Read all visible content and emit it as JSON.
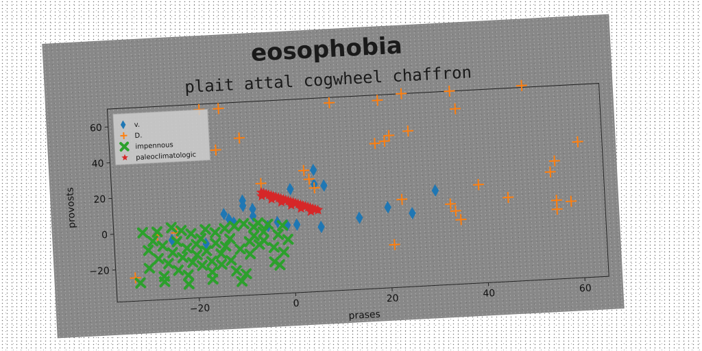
{
  "chart_data": {
    "type": "scatter",
    "title": "eosophobia",
    "subtitle": "plait attal cogwheel chaffron",
    "xlabel": "prases",
    "ylabel": "provosts",
    "xlim": [
      -37,
      65
    ],
    "ylim": [
      -38,
      70
    ],
    "xticks": [
      -20,
      0,
      20,
      40,
      60
    ],
    "yticks": [
      -20,
      0,
      20,
      40,
      60
    ],
    "legend_position": "upper-left",
    "grid": false,
    "series": [
      {
        "name": "v.",
        "marker": "diamond",
        "color": "#1f77b4",
        "x": [
          -14,
          -13,
          -12,
          -10,
          -10,
          -8,
          -8,
          -5,
          -3,
          -1,
          0,
          1,
          5,
          5,
          6,
          7,
          14,
          20,
          25,
          30,
          -25,
          -18
        ],
        "y": [
          8,
          5,
          3,
          15,
          12,
          10,
          6,
          0,
          2,
          0,
          20,
          0,
          30,
          22,
          -2,
          21,
          2,
          7,
          3,
          15,
          -5,
          -8
        ]
      },
      {
        "name": "D.",
        "marker": "plus",
        "color": "#ff7f0e",
        "x": [
          -33,
          -28,
          -24,
          -18,
          -15,
          -14,
          -10,
          -6,
          3,
          4,
          5,
          9,
          18,
          19,
          20,
          21,
          23,
          24,
          25,
          33,
          34,
          34,
          35,
          35,
          39,
          45,
          49,
          54,
          55,
          55,
          55,
          58,
          60,
          21
        ],
        "y": [
          -25,
          -2,
          -1,
          67,
          44,
          67,
          50,
          24,
          30,
          25,
          20,
          67,
          43,
          67,
          44,
          47,
          11,
          70,
          49,
          7,
          70,
          3,
          -2,
          60,
          17,
          9,
          71,
          22,
          28,
          6,
          1,
          5,
          38,
          -14
        ]
      },
      {
        "name": "impennous",
        "marker": "x",
        "color": "#2ca02c",
        "x": [
          -32,
          -31,
          -30,
          -30,
          -29,
          -28,
          -28,
          -27,
          -27,
          -26,
          -25,
          -25,
          -24,
          -24,
          -23,
          -23,
          -22,
          -22,
          -21,
          -21,
          -20,
          -20,
          -19,
          -19,
          -18,
          -18,
          -17,
          -17,
          -16,
          -16,
          -15,
          -15,
          -14,
          -14,
          -13,
          -13,
          -12,
          -12,
          -11,
          -11,
          -10,
          -10,
          -9,
          -9,
          -8,
          -8,
          -7,
          -7,
          -6,
          -6,
          -5,
          -4,
          -4,
          -3,
          -3,
          -2,
          -2,
          -1,
          -27,
          -22,
          -17
        ],
        "y": [
          -28,
          0,
          -10,
          -20,
          -5,
          0,
          -15,
          -25,
          -8,
          -18,
          -12,
          2,
          -22,
          -6,
          -15,
          0,
          -10,
          -25,
          -18,
          -2,
          -8,
          -14,
          -20,
          -5,
          0,
          -12,
          -18,
          -24,
          -8,
          -2,
          -14,
          -20,
          0,
          -10,
          -6,
          -18,
          1,
          -24,
          -12,
          -30,
          -26,
          2,
          -8,
          -15,
          0,
          -5,
          -10,
          2,
          -3,
          -8,
          1,
          -12,
          -20,
          -5,
          -22,
          -15,
          0,
          -8,
          -28,
          -30,
          -28
        ]
      },
      {
        "name": "paleoclimatologic",
        "marker": "star",
        "color": "#d62728",
        "x": [
          -6,
          -5.5,
          -5,
          -4.5,
          -4,
          -3.5,
          -3,
          -2.5,
          -2,
          -1.5,
          -1,
          -0.5,
          0,
          0.5,
          1,
          1.5,
          2,
          2.5,
          3,
          3.5,
          4,
          4.5,
          5,
          5.5,
          -6,
          -4,
          -2,
          0,
          2,
          4
        ],
        "y": [
          19,
          18.5,
          18,
          17.5,
          17,
          16.5,
          16,
          15.5,
          15,
          14.5,
          14,
          13.5,
          13,
          12.5,
          12,
          11.5,
          11,
          10.5,
          10,
          9.5,
          9,
          8.5,
          8,
          7.5,
          17,
          15,
          13,
          11,
          9,
          7
        ]
      }
    ]
  }
}
